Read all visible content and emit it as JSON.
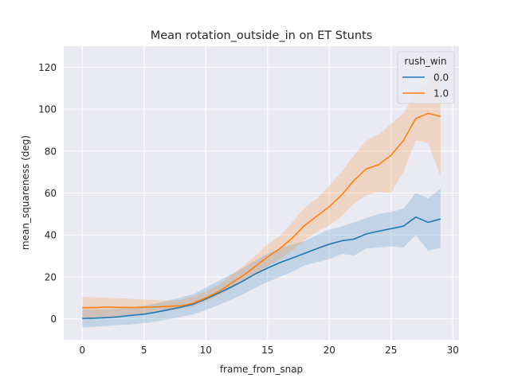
{
  "chart_data": {
    "type": "line",
    "title": "Mean rotation_outside_in on ET Stunts",
    "xlabel": "frame_from_snap",
    "ylabel": "mean_squareness (deg)",
    "xlim": [
      -1.5,
      30.5
    ],
    "ylim": [
      -10,
      130
    ],
    "xticks": [
      0,
      5,
      10,
      15,
      20,
      25,
      30
    ],
    "yticks": [
      0,
      20,
      40,
      60,
      80,
      100,
      120
    ],
    "grid": true,
    "background": "#eaeaf2",
    "legend": {
      "title": "rush_win",
      "position": "top-right"
    },
    "x": [
      0,
      1,
      2,
      3,
      4,
      5,
      6,
      7,
      8,
      9,
      10,
      11,
      12,
      13,
      14,
      15,
      16,
      17,
      18,
      19,
      20,
      21,
      22,
      23,
      24,
      25,
      26,
      27,
      28,
      29
    ],
    "series": [
      {
        "name": "0.0",
        "color": "#1f77b4",
        "values": [
          0.2,
          0.3,
          0.6,
          1.0,
          1.7,
          2.2,
          3.2,
          4.4,
          5.6,
          7.0,
          9.5,
          12.2,
          15.0,
          18.0,
          21.4,
          24.2,
          26.8,
          29.0,
          31.2,
          33.5,
          35.6,
          37.2,
          38.0,
          40.5,
          41.8,
          43.0,
          44.2,
          48.5,
          46.0,
          47.6
        ],
        "ci_lower": [
          -4.0,
          -3.8,
          -3.4,
          -3.0,
          -2.6,
          -2.0,
          -1.2,
          -0.2,
          1.0,
          2.2,
          4.2,
          6.5,
          9.0,
          11.6,
          14.8,
          17.5,
          20.0,
          22.5,
          25.5,
          27.0,
          28.5,
          31.0,
          30.2,
          33.5,
          34.0,
          34.5,
          34.0,
          40.0,
          32.5,
          33.8
        ],
        "ci_upper": [
          4.4,
          4.4,
          4.6,
          5.0,
          5.6,
          6.2,
          7.4,
          8.8,
          10.2,
          11.8,
          14.8,
          18.0,
          21.0,
          24.2,
          27.8,
          31.0,
          33.6,
          35.5,
          37.0,
          40.0,
          42.6,
          44.0,
          46.0,
          48.0,
          50.0,
          51.0,
          52.5,
          60.0,
          57.5,
          62.0
        ]
      },
      {
        "name": "1.0",
        "color": "#ff7f0e",
        "values": [
          5.3,
          5.3,
          5.6,
          5.5,
          5.4,
          5.5,
          5.7,
          6.0,
          6.2,
          7.5,
          10.0,
          12.8,
          16.8,
          20.5,
          25.0,
          29.5,
          33.5,
          38.5,
          44.5,
          49.0,
          53.5,
          59.0,
          66.0,
          71.5,
          73.5,
          78.0,
          85.0,
          95.5,
          98.0,
          96.5
        ],
        "ci_lower": [
          0.3,
          0.4,
          0.8,
          1.2,
          1.6,
          2.4,
          3.0,
          3.8,
          4.8,
          6.0,
          8.2,
          11.0,
          14.2,
          17.5,
          21.0,
          25.0,
          28.5,
          32.5,
          37.5,
          41.5,
          44.5,
          49.0,
          55.0,
          59.0,
          60.5,
          60.0,
          70.0,
          85.0,
          84.0,
          68.0
        ],
        "ci_upper": [
          10.5,
          10.2,
          10.0,
          9.8,
          9.5,
          9.2,
          9.0,
          8.6,
          9.0,
          10.8,
          13.2,
          16.0,
          20.5,
          25.0,
          30.0,
          35.5,
          39.5,
          46.0,
          53.0,
          57.5,
          63.5,
          70.0,
          78.0,
          85.0,
          88.0,
          93.0,
          98.0,
          108.0,
          112.0,
          125.0
        ]
      }
    ]
  }
}
